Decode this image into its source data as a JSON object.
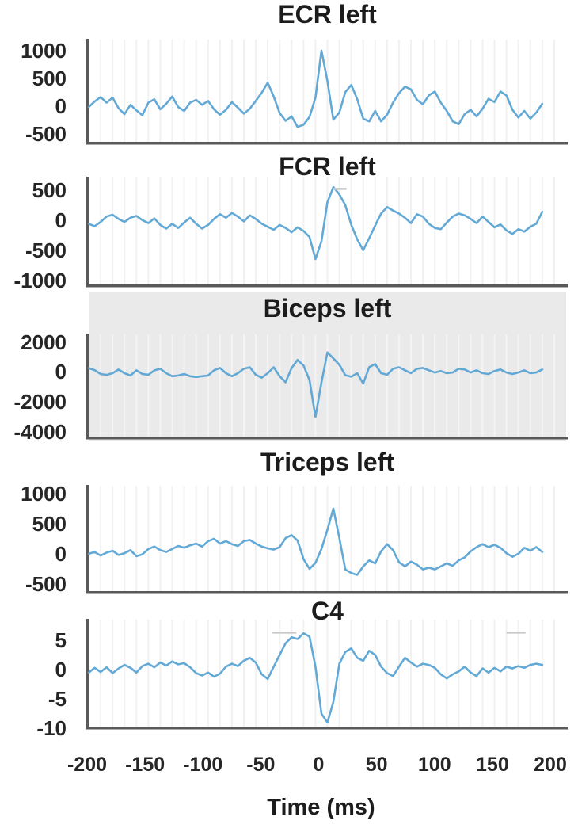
{
  "figure": {
    "x_axis": {
      "title": "Time (ms)",
      "tick_labels": [
        "-200",
        "-150",
        "-100",
        "-50",
        "0",
        "50",
        "100",
        "150",
        "200"
      ]
    },
    "style": {
      "line_color": "#5BA4D4",
      "axis_color": "#595959",
      "panel_highlight": "#EAEAEA",
      "title_color": "#1C1C1C",
      "tick_color": "#262626",
      "grid_color": "#F1F1F1",
      "panel_grid_color": "#F4F4F4",
      "marker_color": "#C8C8C8"
    },
    "marker_dashes": [
      {
        "chart_index": 1,
        "t_start": 5,
        "t_end": 16,
        "value": 520
      },
      {
        "chart_index": 4,
        "t_start": -46,
        "t_end": -26,
        "value": 6.3
      },
      {
        "chart_index": 4,
        "t_start": 150,
        "t_end": 166,
        "value": 6.3
      }
    ]
  },
  "chart_data": [
    {
      "type": "line",
      "title": "ECR left",
      "x_start": -200,
      "x_step": 5,
      "xlim": [
        -200,
        200
      ],
      "ylim": [
        -650,
        1200
      ],
      "y_ticks": [
        1000,
        500,
        0,
        -500
      ],
      "highlighted": false,
      "values": [
        -20,
        80,
        160,
        60,
        150,
        -40,
        -150,
        20,
        -80,
        -170,
        60,
        120,
        -60,
        40,
        170,
        -20,
        -90,
        60,
        110,
        20,
        90,
        -60,
        -160,
        -70,
        70,
        -30,
        -140,
        -50,
        90,
        240,
        420,
        170,
        -130,
        -270,
        -190,
        -380,
        -340,
        -200,
        150,
        1000,
        450,
        -250,
        -120,
        250,
        380,
        120,
        -230,
        -280,
        -90,
        -280,
        -160,
        60,
        230,
        350,
        300,
        110,
        30,
        190,
        260,
        60,
        -90,
        -280,
        -330,
        -150,
        -70,
        -190,
        -50,
        130,
        70,
        260,
        190,
        -70,
        -210,
        -90,
        -230,
        -120,
        40
      ]
    },
    {
      "type": "line",
      "title": "FCR left",
      "x_start": -200,
      "x_step": 5,
      "xlim": [
        -200,
        200
      ],
      "ylim": [
        -1070,
        710
      ],
      "y_ticks": [
        500,
        0,
        -500,
        -1000
      ],
      "highlighted": false,
      "values": [
        -60,
        -100,
        -30,
        60,
        90,
        20,
        -30,
        40,
        70,
        0,
        -50,
        30,
        -80,
        -140,
        -60,
        -130,
        -40,
        40,
        -60,
        -140,
        -80,
        20,
        100,
        40,
        120,
        60,
        -20,
        80,
        20,
        -60,
        -110,
        -160,
        -80,
        -130,
        -200,
        -120,
        -180,
        -280,
        -650,
        -350,
        300,
        550,
        430,
        250,
        -80,
        -320,
        -500,
        -300,
        -90,
        110,
        220,
        160,
        110,
        40,
        -50,
        100,
        60,
        -60,
        -130,
        -150,
        -40,
        60,
        110,
        80,
        20,
        -50,
        60,
        -30,
        -120,
        -70,
        -170,
        -230,
        -150,
        -190,
        -110,
        -60,
        140
      ]
    },
    {
      "type": "line",
      "title": "Biceps left",
      "x_start": -200,
      "x_step": 5,
      "xlim": [
        -200,
        200
      ],
      "ylim": [
        -4320,
        2505
      ],
      "y_ticks": [
        2000,
        0,
        -2000,
        -4000
      ],
      "highlighted": true,
      "values": [
        250,
        120,
        -140,
        -200,
        -90,
        160,
        -90,
        -240,
        110,
        -140,
        -190,
        100,
        210,
        -90,
        -290,
        -240,
        -140,
        -290,
        -340,
        -290,
        -240,
        110,
        260,
        -90,
        -290,
        -90,
        210,
        310,
        -190,
        -390,
        -90,
        310,
        -290,
        -690,
        260,
        800,
        420,
        -550,
        -3000,
        -700,
        1300,
        900,
        480,
        -220,
        -320,
        -90,
        -780,
        320,
        520,
        -90,
        -190,
        210,
        310,
        110,
        -90,
        210,
        260,
        110,
        -40,
        60,
        -90,
        -40,
        210,
        160,
        -40,
        110,
        -90,
        -140,
        60,
        160,
        -40,
        -140,
        -40,
        110,
        -90,
        -40,
        160
      ]
    },
    {
      "type": "line",
      "title": "Triceps left",
      "x_start": -200,
      "x_step": 5,
      "xlim": [
        -200,
        200
      ],
      "ylim": [
        -620,
        1130
      ],
      "y_ticks": [
        1000,
        500,
        0,
        -500
      ],
      "highlighted": false,
      "values": [
        0,
        30,
        -30,
        20,
        50,
        -20,
        10,
        60,
        -40,
        -10,
        80,
        120,
        60,
        30,
        80,
        130,
        100,
        140,
        170,
        120,
        210,
        250,
        170,
        210,
        160,
        130,
        210,
        230,
        170,
        120,
        90,
        70,
        110,
        260,
        310,
        220,
        -90,
        -250,
        -150,
        80,
        400,
        750,
        260,
        -260,
        -320,
        -350,
        -210,
        -110,
        -160,
        40,
        160,
        60,
        -140,
        -210,
        -130,
        -180,
        -260,
        -230,
        -260,
        -210,
        -160,
        -200,
        -110,
        -60,
        40,
        110,
        160,
        110,
        150,
        100,
        10,
        -50,
        0,
        100,
        50,
        110,
        30
      ]
    },
    {
      "type": "line",
      "title": "C4",
      "x_start": -200,
      "x_step": 5,
      "xlim": [
        -200,
        200
      ],
      "ylim": [
        -9.7,
        8.5
      ],
      "y_ticks": [
        5,
        0,
        -5,
        -10
      ],
      "highlighted": false,
      "values": [
        -0.5,
        0.3,
        -0.4,
        0.4,
        -0.6,
        0.2,
        0.8,
        0.3,
        -0.5,
        0.6,
        1.0,
        0.4,
        1.2,
        0.7,
        1.4,
        0.9,
        1.1,
        0.4,
        -0.6,
        -1.0,
        -0.5,
        -1.2,
        -0.7,
        0.5,
        1.0,
        0.6,
        1.5,
        2.0,
        1.2,
        -0.8,
        -1.6,
        0.5,
        2.5,
        4.5,
        5.5,
        5.2,
        6.2,
        5.6,
        0.5,
        -7.5,
        -9.0,
        -5.5,
        1.0,
        3.0,
        3.6,
        2.0,
        1.5,
        3.2,
        2.5,
        0.5,
        -0.6,
        -1.1,
        0.5,
        2.0,
        1.2,
        0.5,
        1.0,
        0.8,
        0.3,
        -0.8,
        -1.5,
        -0.8,
        -0.3,
        0.5,
        -0.5,
        -1.1,
        0.2,
        -0.5,
        0.3,
        -0.3,
        0.5,
        0.2,
        0.6,
        0.3,
        0.8,
        1.0,
        0.8
      ]
    }
  ]
}
